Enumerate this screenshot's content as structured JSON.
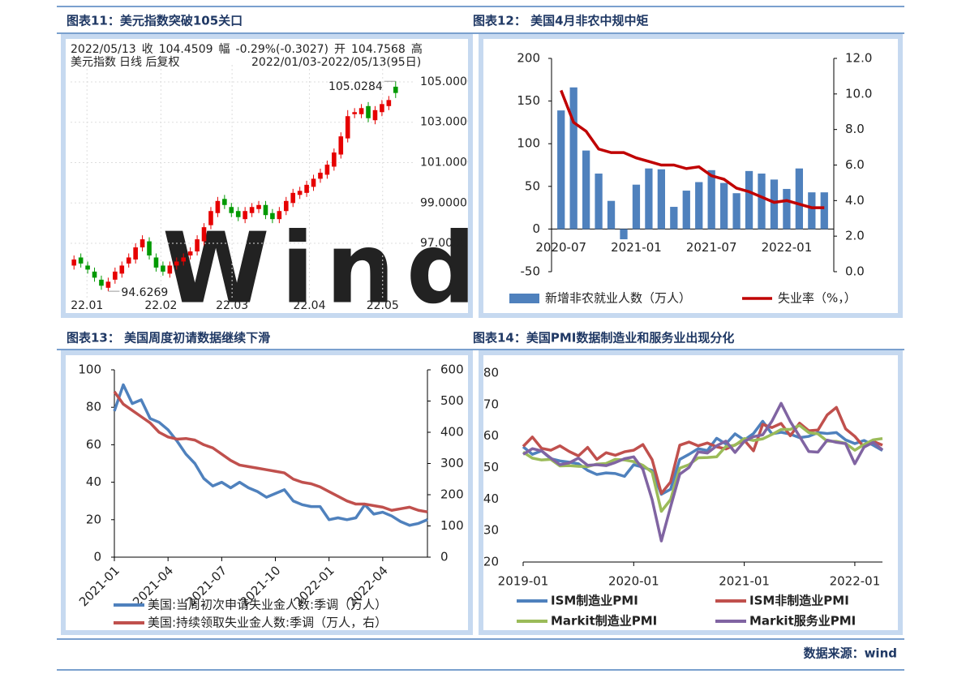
{
  "chart_data": [
    {
      "type": "candlestick",
      "title": "图表11：美元指数突破105关口",
      "info": [
        {
          "text": "2022/05/13",
          "color": "#333333"
        },
        {
          "text": "收",
          "color": "#333333"
        },
        {
          "text": "104.4509",
          "color": "#009900"
        },
        {
          "text": "幅",
          "color": "#333333"
        },
        {
          "text": "-0.29%(-0.3027)",
          "color": "#009900"
        },
        {
          "text": "开",
          "color": "#333333"
        },
        {
          "text": "104.7568",
          "color": "#e60000"
        },
        {
          "text": "高",
          "color": "#333333"
        }
      ],
      "subtitle": [
        {
          "text": "美元指数",
          "color": "#333333"
        },
        {
          "text": "日线 后复权",
          "color": "#e60000"
        },
        {
          "text": "2022/01/03-2022/05/13(95日)",
          "color": "#333333"
        }
      ],
      "watermark": "Wind",
      "open": [
        95.9,
        96.3,
        95.9,
        95.6,
        95.2,
        94.8,
        95.2,
        95.5,
        96.0,
        96.2,
        96.8,
        97.1,
        96.3,
        95.9,
        95.5,
        95.9,
        96.1,
        96.4,
        96.6,
        97.1,
        97.9,
        98.5,
        99.2,
        98.8,
        98.6,
        98.2,
        98.5,
        98.7,
        98.9,
        98.5,
        98.2,
        98.6,
        99.0,
        99.4,
        99.5,
        99.8,
        100.2,
        100.4,
        100.8,
        101.4,
        102.2,
        103.4,
        103.4,
        103.8,
        103.1,
        103.5,
        103.8,
        104.76
      ],
      "high": [
        96.4,
        96.5,
        96.1,
        95.8,
        95.4,
        95.3,
        95.8,
        96.1,
        96.5,
        97.0,
        97.4,
        97.3,
        96.5,
        96.1,
        96.1,
        96.3,
        96.5,
        96.8,
        97.4,
        98.0,
        98.8,
        99.3,
        99.4,
        99.0,
        98.8,
        98.8,
        99.0,
        99.1,
        99.1,
        98.7,
        98.8,
        99.3,
        99.7,
        99.8,
        100.1,
        100.4,
        100.7,
        101.1,
        101.7,
        102.5,
        103.6,
        103.7,
        103.9,
        104.0,
        103.8,
        104.1,
        104.3,
        105.0284
      ],
      "low": [
        95.7,
        95.8,
        95.5,
        95.1,
        94.7,
        94.6269,
        95.0,
        95.3,
        95.8,
        96.0,
        96.6,
        96.2,
        95.6,
        95.4,
        95.3,
        95.7,
        95.9,
        96.2,
        96.4,
        96.9,
        97.7,
        98.3,
        98.7,
        98.3,
        98.1,
        98.0,
        98.3,
        98.5,
        98.2,
        98.0,
        98.0,
        98.4,
        98.8,
        99.2,
        99.3,
        99.6,
        100.0,
        100.2,
        100.6,
        101.2,
        102.0,
        103.2,
        103.2,
        103.0,
        102.9,
        103.3,
        103.6,
        104.2
      ],
      "close": [
        96.2,
        96.0,
        95.7,
        95.3,
        94.9,
        95.1,
        95.6,
        95.9,
        96.3,
        96.8,
        97.2,
        96.4,
        95.8,
        95.6,
        95.9,
        96.1,
        96.3,
        96.6,
        97.2,
        97.8,
        98.6,
        99.1,
        98.9,
        98.5,
        98.3,
        98.6,
        98.8,
        98.9,
        98.4,
        98.2,
        98.6,
        99.1,
        99.5,
        99.6,
        99.9,
        100.2,
        100.5,
        100.9,
        101.5,
        102.3,
        103.3,
        103.5,
        103.7,
        103.2,
        103.6,
        103.9,
        104.1,
        104.45
      ],
      "colors": {
        "up": "#e60000",
        "down": "#009900"
      },
      "ylim": [
        94.27,
        105.52
      ],
      "yticks": [
        {
          "value": 97,
          "label": "97.0000"
        },
        {
          "value": 99,
          "label": "99.0000"
        },
        {
          "value": 101,
          "label": "101.0000"
        },
        {
          "value": 103,
          "label": "103.0000"
        },
        {
          "value": 105,
          "label": "105.0000"
        }
      ],
      "xlim": [
        0,
        48
      ],
      "xticks": [
        {
          "value": 2.4,
          "label": "22.01"
        },
        {
          "value": 13.2,
          "label": "22.02"
        },
        {
          "value": 23.6,
          "label": "22.03"
        },
        {
          "value": 34.9,
          "label": "22.04"
        },
        {
          "value": 45.6,
          "label": "22.05"
        }
      ],
      "grid": true
    },
    {
      "type": "combo",
      "title": "图表12： 美国4月非农中规中矩",
      "categories": [
        "2020-07",
        null,
        null,
        null,
        null,
        null,
        "2021-01",
        null,
        null,
        null,
        null,
        null,
        "2021-07",
        null,
        null,
        null,
        null,
        null,
        "2022-01",
        null,
        null,
        null
      ],
      "series": [
        {
          "name": "新增非农就业人数（万人）",
          "type": "bar",
          "color": "#4f81bd",
          "values": [
            139,
            166,
            92,
            65,
            33,
            -12,
            52,
            71,
            70,
            26,
            45,
            55,
            69,
            54,
            42,
            68,
            65,
            58,
            47,
            71,
            43,
            43
          ]
        },
        {
          "name": "失业率（%，）",
          "type": "line",
          "axis": "y2",
          "color": "#c00000",
          "values": [
            10.2,
            8.4,
            7.9,
            6.9,
            6.7,
            6.7,
            6.4,
            6.2,
            6.0,
            6.0,
            5.8,
            5.9,
            5.4,
            5.2,
            4.7,
            4.5,
            4.2,
            3.9,
            4.0,
            3.8,
            3.6,
            3.6
          ]
        }
      ],
      "ylim": [
        -50,
        200
      ],
      "yticks": [
        -50,
        0,
        50,
        100,
        150,
        200
      ],
      "y2lim": [
        0,
        12
      ],
      "y2ticks": [
        {
          "value": 0,
          "label": "0.0"
        },
        {
          "value": 2,
          "label": "2.0"
        },
        {
          "value": 4,
          "label": "4.0"
        },
        {
          "value": 6,
          "label": "6.0"
        },
        {
          "value": 8,
          "label": "8.0"
        },
        {
          "value": 10,
          "label": "10.0"
        },
        {
          "value": 12,
          "label": "12.0"
        }
      ],
      "legend": "bottom"
    },
    {
      "type": "line",
      "title": "图表13： 美国周度初请数据继续下滑",
      "categories": [
        "2021-01",
        null,
        null,
        null,
        null,
        null,
        "2021-04",
        null,
        null,
        null,
        null,
        null,
        "2021-07",
        null,
        null,
        null,
        null,
        null,
        "2021-10",
        null,
        null,
        null,
        null,
        null,
        "2022-01",
        null,
        null,
        null,
        null,
        null,
        "2022-04",
        null,
        null,
        null,
        null,
        null
      ],
      "series": [
        {
          "name": "美国:当周初次申请失业金人数:季调（万人）",
          "color": "#4f81bd",
          "values": [
            78,
            92,
            82,
            84,
            74,
            72,
            68,
            62,
            55,
            50,
            42,
            38,
            40,
            37,
            40,
            37,
            35,
            32,
            34,
            36,
            30,
            28,
            27,
            27,
            20,
            21,
            20,
            21,
            28,
            23,
            24,
            22,
            19,
            17,
            18,
            20
          ]
        },
        {
          "name": "美国:持续领取失业金人数:季调（万人，右）",
          "color": "#c0504d",
          "axis": "y2",
          "values": [
            530,
            490,
            470,
            450,
            430,
            400,
            385,
            378,
            380,
            375,
            360,
            350,
            330,
            310,
            295,
            290,
            285,
            280,
            275,
            270,
            250,
            240,
            235,
            225,
            210,
            195,
            180,
            170,
            170,
            165,
            160,
            150,
            155,
            160,
            150,
            145
          ]
        }
      ],
      "ylim": [
        0,
        100
      ],
      "yticks": [
        0,
        20,
        40,
        60,
        80,
        100
      ],
      "y2lim": [
        0,
        600
      ],
      "y2ticks": [
        0,
        100,
        200,
        300,
        400,
        500,
        600
      ],
      "xlabel_rotation": -45,
      "legend": "bottom"
    },
    {
      "type": "line",
      "title": "图表14：美国PMI数据制造业和服务业出现分化",
      "categories": [
        "2019-01",
        null,
        null,
        null,
        null,
        null,
        null,
        null,
        null,
        null,
        null,
        null,
        "2020-01",
        null,
        null,
        null,
        null,
        null,
        null,
        null,
        null,
        null,
        null,
        null,
        "2021-01",
        null,
        null,
        null,
        null,
        null,
        null,
        null,
        null,
        null,
        null,
        null,
        "2022-01",
        null,
        null,
        null
      ],
      "series": [
        {
          "name": "ISM制造业PMI",
          "color": "#4f81bd",
          "values": [
            56.6,
            54.2,
            55.3,
            52.8,
            52.1,
            51.7,
            51.2,
            49.1,
            47.8,
            48.3,
            48.1,
            47.2,
            50.9,
            50.1,
            49.1,
            41.5,
            43.1,
            52.6,
            54.2,
            56.0,
            55.4,
            59.3,
            57.5,
            60.7,
            58.7,
            60.8,
            64.7,
            60.7,
            61.2,
            60.6,
            59.5,
            59.9,
            61.1,
            60.8,
            61.1,
            58.8,
            57.6,
            58.6,
            57.1,
            55.4
          ]
        },
        {
          "name": "ISM非制造业PMI",
          "color": "#c0504d",
          "values": [
            56.7,
            59.7,
            56.1,
            55.5,
            56.9,
            55.1,
            53.7,
            56.4,
            52.6,
            54.7,
            53.9,
            55.0,
            55.5,
            57.3,
            52.5,
            41.8,
            45.4,
            57.1,
            58.1,
            56.9,
            57.8,
            56.6,
            55.9,
            57.2,
            58.7,
            55.3,
            63.7,
            62.7,
            64.0,
            60.1,
            64.1,
            61.7,
            61.9,
            66.7,
            69.1,
            62.3,
            59.9,
            56.5,
            58.3,
            57.1
          ]
        },
        {
          "name": "Markit制造业PMI",
          "color": "#9bbb59",
          "values": [
            54.9,
            53.0,
            52.4,
            52.6,
            50.5,
            50.6,
            50.4,
            50.3,
            51.1,
            51.3,
            52.6,
            52.4,
            51.9,
            50.7,
            48.5,
            36.1,
            39.8,
            49.8,
            50.9,
            53.1,
            53.2,
            53.4,
            56.7,
            57.1,
            59.2,
            58.6,
            59.1,
            60.5,
            62.1,
            62.1,
            63.4,
            61.1,
            60.7,
            58.4,
            58.3,
            57.7,
            55.5,
            57.3,
            58.8,
            59.2
          ]
        },
        {
          "name": "Markit服务业PMI",
          "color": "#8064a2",
          "values": [
            54.2,
            56.0,
            55.3,
            53.0,
            50.9,
            51.5,
            53.0,
            50.7,
            50.9,
            50.6,
            51.6,
            52.8,
            53.4,
            49.4,
            39.8,
            26.7,
            37.5,
            47.9,
            50.0,
            55.0,
            54.6,
            56.9,
            58.4,
            54.8,
            58.3,
            59.8,
            60.4,
            64.7,
            70.4,
            64.6,
            59.9,
            55.1,
            54.9,
            58.7,
            58.0,
            57.6,
            51.2,
            56.5,
            58.0,
            55.6
          ]
        }
      ],
      "ylim": [
        20,
        80
      ],
      "yticks": [
        20,
        30,
        40,
        50,
        60,
        70,
        80
      ],
      "legend": "bottom"
    }
  ],
  "source": "数据来源：wind"
}
